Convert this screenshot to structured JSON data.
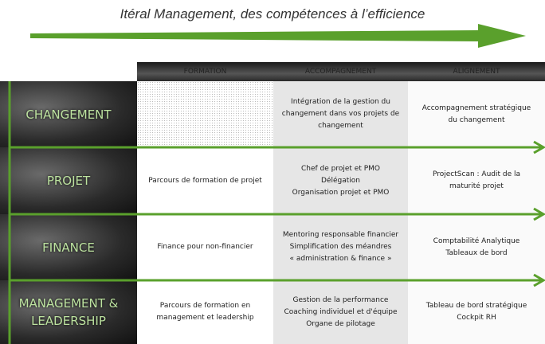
{
  "title": "Itéral Management, des compétences à l’efficience",
  "columns": [
    "FORMATION",
    "ACCOMPAGNEMENT",
    "ALIGNEMENT"
  ],
  "rows": [
    {
      "label": [
        "CHANGEMENT"
      ],
      "cells": [
        [],
        [
          "Intégration de la gestion du",
          "changement dans vos projets de",
          "changement"
        ],
        [
          "Accompagnement stratégique",
          "du changement"
        ]
      ]
    },
    {
      "label": [
        "PROJET"
      ],
      "cells": [
        [
          "Parcours de formation de projet"
        ],
        [
          "Chef de projet et PMO",
          "Délégation",
          "Organisation projet et PMO"
        ],
        [
          "ProjectScan : Audit de la",
          "maturité projet"
        ]
      ]
    },
    {
      "label": [
        "FINANCE"
      ],
      "cells": [
        [
          "Finance pour non-financier"
        ],
        [
          "Mentoring responsable financier",
          "Simplification des méandres",
          "« administration & finance »"
        ],
        [
          "Comptabilité Analytique",
          "Tableaux de bord"
        ]
      ]
    },
    {
      "label": [
        "MANAGEMENT &",
        "LEADERSHIP"
      ],
      "cells": [
        [
          "Parcours de formation en",
          "management et leadership"
        ],
        [
          "Gestion de la performance",
          "Coaching individuel et d'équipe",
          "Organe de pilotage"
        ],
        [
          "Tableau de bord stratégique",
          "Cockpit RH"
        ]
      ]
    }
  ]
}
